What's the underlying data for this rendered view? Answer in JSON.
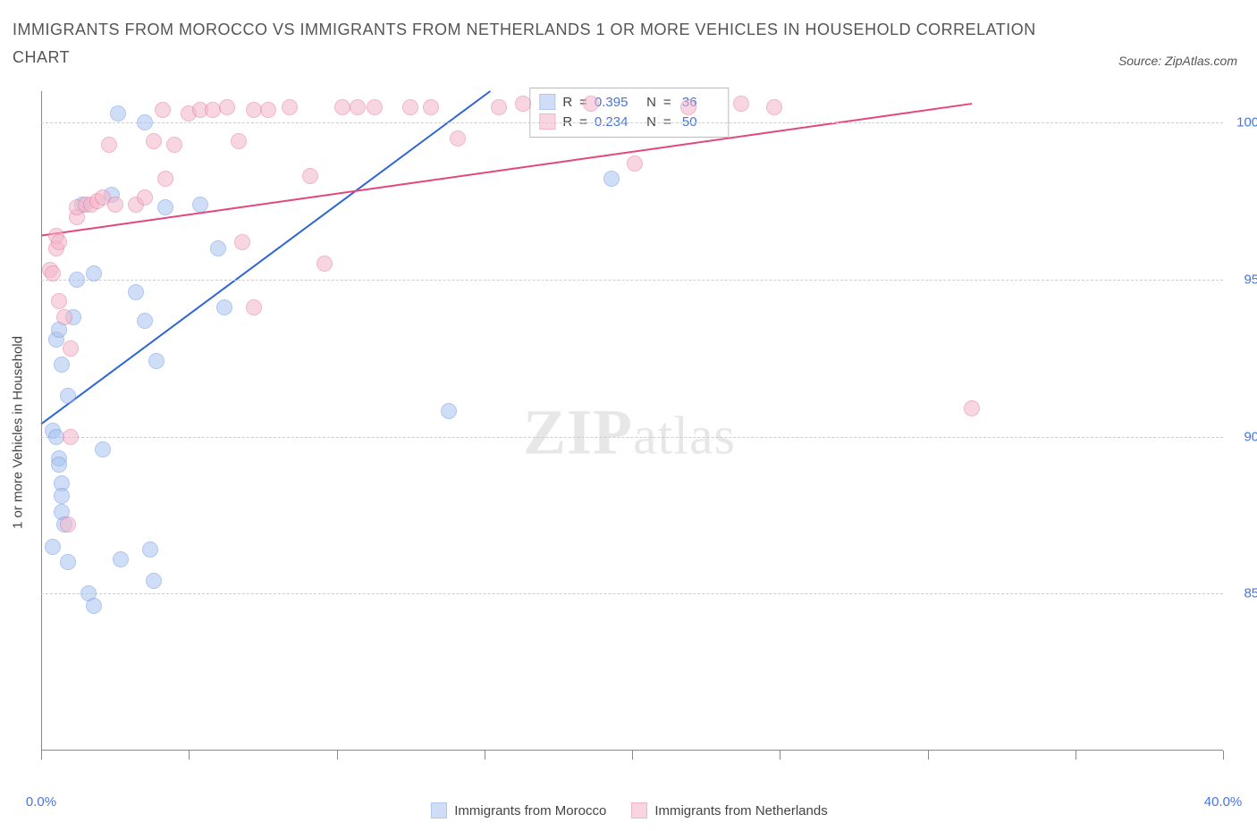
{
  "title": "IMMIGRANTS FROM MOROCCO VS IMMIGRANTS FROM NETHERLANDS 1 OR MORE VEHICLES IN HOUSEHOLD CORRELATION CHART",
  "source_prefix": "Source: ",
  "source_label": "ZipAtlas.com",
  "y_axis_label": "1 or more Vehicles in Household",
  "watermark": {
    "left": "ZIP",
    "right": "atlas"
  },
  "chart": {
    "type": "scatter",
    "background_color": "#ffffff",
    "axis_color": "#888888",
    "grid_color": "#cccccc",
    "text_color": "#555555",
    "value_color": "#4a74d8",
    "xlim": [
      0.0,
      40.0
    ],
    "ylim": [
      80.0,
      101.0
    ],
    "x_ticks": [
      0.0,
      5.0,
      10.0,
      15.0,
      20.0,
      25.0,
      30.0,
      35.0,
      40.0
    ],
    "x_tick_labels_shown": {
      "0.0": "0.0%",
      "40.0": "40.0%"
    },
    "y_ticks": [
      85.0,
      90.0,
      95.0,
      100.0
    ],
    "y_tick_labels": {
      "85.0": "85.0%",
      "90.0": "90.0%",
      "95.0": "95.0%",
      "100.0": "100.0%"
    },
    "series": [
      {
        "key": "morocco",
        "label": "Immigrants from Morocco",
        "fill": "#a8c4f0",
        "fill_opacity": 0.55,
        "stroke": "#6f9ae6",
        "stroke_opacity": 0.9,
        "trend_stroke": "#2e64d6",
        "trend_width": 2,
        "marker_radius": 9,
        "R": "0.395",
        "N": "36",
        "trend": {
          "x1": 0.0,
          "y1": 90.4,
          "x2": 15.2,
          "y2": 101.0
        },
        "points": [
          [
            0.4,
            90.2
          ],
          [
            0.5,
            90.0
          ],
          [
            0.6,
            89.3
          ],
          [
            0.6,
            89.1
          ],
          [
            0.7,
            88.5
          ],
          [
            0.7,
            88.1
          ],
          [
            0.7,
            87.6
          ],
          [
            0.8,
            87.2
          ],
          [
            0.4,
            86.5
          ],
          [
            0.9,
            86.0
          ],
          [
            1.6,
            85.0
          ],
          [
            2.7,
            86.1
          ],
          [
            3.7,
            86.4
          ],
          [
            3.8,
            85.4
          ],
          [
            1.8,
            84.6
          ],
          [
            2.1,
            89.6
          ],
          [
            0.5,
            93.1
          ],
          [
            0.6,
            93.4
          ],
          [
            0.7,
            92.3
          ],
          [
            0.9,
            91.3
          ],
          [
            1.1,
            93.8
          ],
          [
            1.2,
            95.0
          ],
          [
            1.8,
            95.2
          ],
          [
            3.2,
            94.6
          ],
          [
            3.5,
            93.7
          ],
          [
            3.9,
            92.4
          ],
          [
            1.4,
            97.4
          ],
          [
            2.4,
            97.7
          ],
          [
            4.2,
            97.3
          ],
          [
            5.4,
            97.4
          ],
          [
            3.5,
            100.0
          ],
          [
            2.6,
            100.3
          ],
          [
            6.0,
            96.0
          ],
          [
            6.2,
            94.1
          ],
          [
            13.8,
            90.8
          ],
          [
            19.3,
            98.2
          ]
        ]
      },
      {
        "key": "netherlands",
        "label": "Immigrants from Netherlands",
        "fill": "#f4b6ca",
        "fill_opacity": 0.55,
        "stroke": "#e77aa0",
        "stroke_opacity": 0.9,
        "trend_stroke": "#e3467f",
        "trend_width": 2,
        "marker_radius": 9,
        "R": "0.234",
        "N": "50",
        "trend": {
          "x1": 0.0,
          "y1": 96.4,
          "x2": 31.5,
          "y2": 100.6
        },
        "points": [
          [
            0.3,
            95.3
          ],
          [
            0.4,
            95.2
          ],
          [
            0.5,
            96.0
          ],
          [
            0.5,
            96.4
          ],
          [
            0.6,
            96.2
          ],
          [
            0.6,
            94.3
          ],
          [
            0.8,
            93.8
          ],
          [
            1.0,
            92.8
          ],
          [
            1.0,
            90.0
          ],
          [
            0.9,
            87.2
          ],
          [
            1.2,
            97.0
          ],
          [
            1.2,
            97.3
          ],
          [
            1.5,
            97.4
          ],
          [
            1.7,
            97.4
          ],
          [
            1.9,
            97.5
          ],
          [
            2.1,
            97.6
          ],
          [
            2.3,
            99.3
          ],
          [
            2.5,
            97.4
          ],
          [
            3.2,
            97.4
          ],
          [
            3.5,
            97.6
          ],
          [
            3.8,
            99.4
          ],
          [
            4.2,
            98.2
          ],
          [
            4.5,
            99.3
          ],
          [
            4.1,
            100.4
          ],
          [
            5.0,
            100.3
          ],
          [
            5.4,
            100.4
          ],
          [
            5.8,
            100.4
          ],
          [
            6.3,
            100.5
          ],
          [
            6.7,
            99.4
          ],
          [
            7.2,
            100.4
          ],
          [
            7.7,
            100.4
          ],
          [
            7.2,
            94.1
          ],
          [
            8.4,
            100.5
          ],
          [
            9.1,
            98.3
          ],
          [
            9.6,
            95.5
          ],
          [
            10.2,
            100.5
          ],
          [
            10.7,
            100.5
          ],
          [
            11.3,
            100.5
          ],
          [
            6.8,
            96.2
          ],
          [
            12.5,
            100.5
          ],
          [
            13.2,
            100.5
          ],
          [
            14.1,
            99.5
          ],
          [
            15.5,
            100.5
          ],
          [
            16.3,
            100.6
          ],
          [
            18.6,
            100.6
          ],
          [
            20.1,
            98.7
          ],
          [
            21.9,
            100.5
          ],
          [
            23.7,
            100.6
          ],
          [
            24.8,
            100.5
          ],
          [
            31.5,
            90.9
          ]
        ]
      }
    ],
    "stats_box": {
      "rows": [
        {
          "series_key": "morocco",
          "R_label": "R",
          "N_label": "N"
        },
        {
          "series_key": "netherlands",
          "R_label": "R",
          "N_label": "N"
        }
      ]
    }
  },
  "bottom_legend": [
    {
      "series_key": "morocco"
    },
    {
      "series_key": "netherlands"
    }
  ]
}
